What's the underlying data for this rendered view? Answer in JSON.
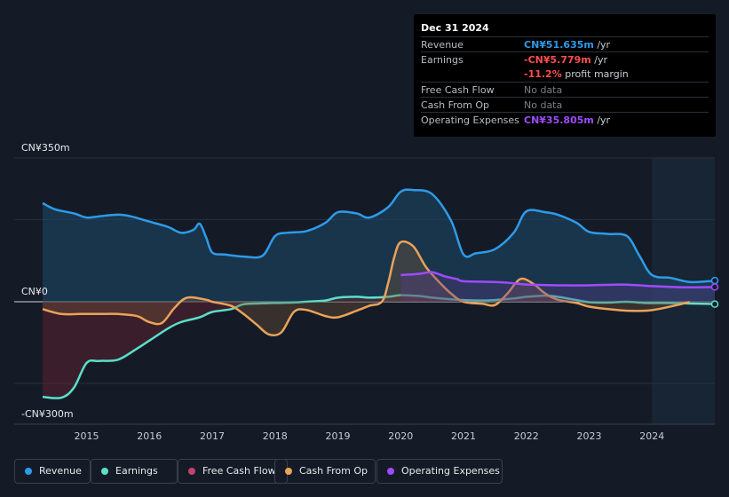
{
  "chart_data": {
    "type": "line",
    "currency_unit": "CN¥",
    "y_axis": {
      "top_label": "CN¥350m",
      "zero_label": "CN¥0",
      "bottom_label": "-CN¥300m",
      "ylim": [
        -300,
        350
      ]
    },
    "x_ticks": [
      "2015",
      "2016",
      "2017",
      "2018",
      "2019",
      "2020",
      "2021",
      "2022",
      "2023",
      "2024"
    ],
    "x_tick_values": [
      2015,
      2016,
      2017,
      2018,
      2019,
      2020,
      2021,
      2022,
      2023,
      2024
    ],
    "xlim": [
      2014.3,
      2025.0
    ],
    "forecast_start": 2024.0,
    "series": [
      {
        "name": "Revenue",
        "color": "#2e9bea",
        "fill": true,
        "start": 2014.3,
        "points": [
          [
            2014.3,
            240
          ],
          [
            2014.5,
            225
          ],
          [
            2014.8,
            215
          ],
          [
            2015.0,
            205
          ],
          [
            2015.2,
            208
          ],
          [
            2015.5,
            212
          ],
          [
            2015.7,
            208
          ],
          [
            2016.0,
            195
          ],
          [
            2016.3,
            182
          ],
          [
            2016.5,
            168
          ],
          [
            2016.7,
            175
          ],
          [
            2016.8,
            190
          ],
          [
            2016.9,
            158
          ],
          [
            2017.0,
            120
          ],
          [
            2017.2,
            115
          ],
          [
            2017.5,
            110
          ],
          [
            2017.8,
            112
          ],
          [
            2018.0,
            160
          ],
          [
            2018.2,
            168
          ],
          [
            2018.5,
            172
          ],
          [
            2018.8,
            192
          ],
          [
            2019.0,
            218
          ],
          [
            2019.3,
            215
          ],
          [
            2019.5,
            205
          ],
          [
            2019.8,
            230
          ],
          [
            2020.0,
            268
          ],
          [
            2020.2,
            272
          ],
          [
            2020.5,
            262
          ],
          [
            2020.8,
            198
          ],
          [
            2021.0,
            115
          ],
          [
            2021.2,
            118
          ],
          [
            2021.5,
            128
          ],
          [
            2021.8,
            168
          ],
          [
            2022.0,
            220
          ],
          [
            2022.3,
            218
          ],
          [
            2022.5,
            212
          ],
          [
            2022.8,
            192
          ],
          [
            2023.0,
            170
          ],
          [
            2023.3,
            165
          ],
          [
            2023.6,
            160
          ],
          [
            2023.8,
            112
          ],
          [
            2024.0,
            65
          ],
          [
            2024.3,
            58
          ],
          [
            2024.6,
            48
          ],
          [
            2024.9,
            50
          ],
          [
            2025.0,
            51.6
          ]
        ]
      },
      {
        "name": "Earnings",
        "color": "#5ae0c8",
        "fill": true,
        "start": 2014.3,
        "points": [
          [
            2014.3,
            -233
          ],
          [
            2014.6,
            -235
          ],
          [
            2014.8,
            -210
          ],
          [
            2015.0,
            -150
          ],
          [
            2015.2,
            -145
          ],
          [
            2015.5,
            -142
          ],
          [
            2015.8,
            -115
          ],
          [
            2016.0,
            -95
          ],
          [
            2016.3,
            -65
          ],
          [
            2016.5,
            -50
          ],
          [
            2016.8,
            -38
          ],
          [
            2017.0,
            -25
          ],
          [
            2017.3,
            -18
          ],
          [
            2017.5,
            -6
          ],
          [
            2017.8,
            -4
          ],
          [
            2018.0,
            -3
          ],
          [
            2018.3,
            -2
          ],
          [
            2018.5,
            0
          ],
          [
            2018.8,
            3
          ],
          [
            2019.0,
            10
          ],
          [
            2019.3,
            12
          ],
          [
            2019.5,
            10
          ],
          [
            2019.8,
            12
          ],
          [
            2020.0,
            16
          ],
          [
            2020.3,
            14
          ],
          [
            2020.5,
            10
          ],
          [
            2020.8,
            6
          ],
          [
            2021.0,
            4
          ],
          [
            2021.3,
            3
          ],
          [
            2021.5,
            4
          ],
          [
            2021.8,
            8
          ],
          [
            2022.0,
            12
          ],
          [
            2022.3,
            15
          ],
          [
            2022.5,
            12
          ],
          [
            2022.8,
            4
          ],
          [
            2023.0,
            -1
          ],
          [
            2023.3,
            -2
          ],
          [
            2023.6,
            0
          ],
          [
            2023.9,
            -3
          ],
          [
            2024.2,
            -3
          ],
          [
            2024.5,
            -4
          ],
          [
            2024.8,
            -5
          ],
          [
            2025.0,
            -5.8
          ]
        ]
      },
      {
        "name": "Cash From Op",
        "color": "#e9a35a",
        "fill": true,
        "start": 2014.3,
        "points": [
          [
            2014.3,
            -18
          ],
          [
            2014.6,
            -30
          ],
          [
            2014.9,
            -30
          ],
          [
            2015.2,
            -30
          ],
          [
            2015.5,
            -30
          ],
          [
            2015.8,
            -35
          ],
          [
            2016.0,
            -50
          ],
          [
            2016.2,
            -52
          ],
          [
            2016.4,
            -15
          ],
          [
            2016.6,
            10
          ],
          [
            2016.9,
            5
          ],
          [
            2017.0,
            0
          ],
          [
            2017.3,
            -10
          ],
          [
            2017.5,
            -30
          ],
          [
            2017.7,
            -55
          ],
          [
            2017.9,
            -80
          ],
          [
            2018.1,
            -75
          ],
          [
            2018.3,
            -25
          ],
          [
            2018.5,
            -20
          ],
          [
            2018.8,
            -35
          ],
          [
            2019.0,
            -38
          ],
          [
            2019.3,
            -22
          ],
          [
            2019.5,
            -10
          ],
          [
            2019.7,
            0
          ],
          [
            2019.8,
            45
          ],
          [
            2019.9,
            110
          ],
          [
            2020.0,
            145
          ],
          [
            2020.2,
            135
          ],
          [
            2020.4,
            85
          ],
          [
            2020.6,
            50
          ],
          [
            2020.8,
            20
          ],
          [
            2021.0,
            0
          ],
          [
            2021.3,
            -5
          ],
          [
            2021.5,
            -8
          ],
          [
            2021.7,
            20
          ],
          [
            2021.9,
            55
          ],
          [
            2022.1,
            45
          ],
          [
            2022.3,
            20
          ],
          [
            2022.5,
            5
          ],
          [
            2022.8,
            -3
          ],
          [
            2023.0,
            -12
          ],
          [
            2023.3,
            -18
          ],
          [
            2023.6,
            -22
          ],
          [
            2023.9,
            -22
          ],
          [
            2024.1,
            -18
          ],
          [
            2024.4,
            -8
          ],
          [
            2024.6,
            0
          ]
        ]
      },
      {
        "name": "Operating Expenses",
        "color": "#9f4bff",
        "fill": true,
        "start": 2020.0,
        "points": [
          [
            2020.0,
            65
          ],
          [
            2020.3,
            68
          ],
          [
            2020.5,
            72
          ],
          [
            2020.7,
            62
          ],
          [
            2020.9,
            55
          ],
          [
            2021.0,
            50
          ],
          [
            2021.5,
            48
          ],
          [
            2021.8,
            45
          ],
          [
            2022.0,
            42
          ],
          [
            2022.5,
            40
          ],
          [
            2023.0,
            40
          ],
          [
            2023.5,
            42
          ],
          [
            2023.8,
            40
          ],
          [
            2024.0,
            38
          ],
          [
            2024.3,
            36
          ],
          [
            2024.6,
            35
          ],
          [
            2025.0,
            35.8
          ]
        ]
      },
      {
        "name": "Free Cash Flow",
        "color": "#c4436e",
        "fill": false,
        "start": null,
        "points": []
      }
    ]
  },
  "tooltip": {
    "date": "Dec 31 2024",
    "rows": [
      {
        "key": "Revenue",
        "value": "CN¥51.635m",
        "unit": " /yr"
      },
      {
        "key": "Earnings",
        "value": "-CN¥5.779m",
        "unit": " /yr"
      },
      {
        "key": "",
        "value": "-11.2%",
        "unit": " profit margin"
      },
      {
        "key": "Free Cash Flow",
        "value": "No data",
        "unit": ""
      },
      {
        "key": "Cash From Op",
        "value": "No data",
        "unit": ""
      },
      {
        "key": "Operating Expenses",
        "value": "CN¥35.805m",
        "unit": " /yr"
      }
    ]
  },
  "legend": [
    {
      "label": "Revenue",
      "color": "#2e9bea"
    },
    {
      "label": "Earnings",
      "color": "#5ae0c8"
    },
    {
      "label": "Free Cash Flow",
      "color": "#c4436e"
    },
    {
      "label": "Cash From Op",
      "color": "#e9a35a"
    },
    {
      "label": "Operating Expenses",
      "color": "#9f4bff"
    }
  ]
}
